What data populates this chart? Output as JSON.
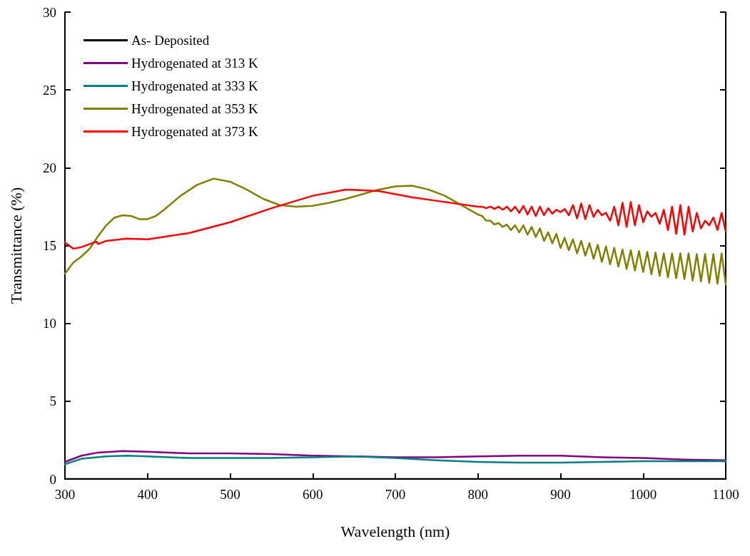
{
  "chart_data": {
    "type": "line",
    "xlabel": "Wavelength (nm)",
    "ylabel": "Transmittance (%)",
    "xlim": [
      300,
      1100
    ],
    "xticks": [
      300,
      400,
      500,
      600,
      700,
      800,
      900,
      1000,
      1100
    ],
    "ylim": [
      0,
      30
    ],
    "yticks": [
      0,
      5,
      10,
      15,
      20,
      25,
      30
    ],
    "grid": false,
    "legend": "top left",
    "marker": "none",
    "line_style": "solid",
    "series": [
      {
        "name": "As- Deposited",
        "color": "#000000",
        "x": [
          300,
          1100
        ],
        "values": [
          0,
          0
        ]
      },
      {
        "name": "Hydrogenated at 313 K",
        "color": "#800080",
        "x": [
          300,
          320,
          340,
          370,
          400,
          450,
          500,
          550,
          600,
          650,
          700,
          750,
          800,
          850,
          900,
          950,
          1000,
          1050,
          1100
        ],
        "values": [
          1.1,
          1.5,
          1.7,
          1.8,
          1.75,
          1.65,
          1.65,
          1.6,
          1.5,
          1.45,
          1.4,
          1.4,
          1.45,
          1.5,
          1.5,
          1.4,
          1.35,
          1.25,
          1.2
        ]
      },
      {
        "name": "Hydrogenated at 333 K",
        "color": "#008080",
        "x": [
          300,
          320,
          350,
          375,
          400,
          450,
          500,
          550,
          600,
          650,
          700,
          750,
          800,
          850,
          900,
          950,
          1000,
          1050,
          1100
        ],
        "values": [
          0.95,
          1.3,
          1.45,
          1.5,
          1.45,
          1.35,
          1.35,
          1.35,
          1.4,
          1.45,
          1.35,
          1.2,
          1.1,
          1.05,
          1.05,
          1.1,
          1.15,
          1.15,
          1.15
        ]
      },
      {
        "name": "Hydrogenated at 353 K",
        "color": "#808000",
        "x": [
          300,
          310,
          320,
          330,
          340,
          350,
          360,
          370,
          380,
          390,
          400,
          410,
          420,
          440,
          460,
          480,
          500,
          520,
          540,
          560,
          580,
          600,
          620,
          640,
          660,
          680,
          700,
          720,
          740,
          760,
          780,
          800,
          805,
          810,
          815,
          820,
          825,
          830,
          835,
          840,
          845,
          850,
          855,
          860,
          865,
          870,
          875,
          880,
          885,
          890,
          895,
          900,
          905,
          910,
          915,
          920,
          925,
          930,
          935,
          940,
          945,
          950,
          955,
          960,
          965,
          970,
          975,
          980,
          985,
          990,
          995,
          1000,
          1005,
          1010,
          1015,
          1020,
          1025,
          1030,
          1035,
          1040,
          1045,
          1050,
          1055,
          1060,
          1065,
          1070,
          1075,
          1080,
          1085,
          1090,
          1095,
          1100
        ],
        "values": [
          13.2,
          13.9,
          14.3,
          14.8,
          15.6,
          16.3,
          16.8,
          16.95,
          16.9,
          16.7,
          16.7,
          16.9,
          17.3,
          18.2,
          18.9,
          19.3,
          19.1,
          18.6,
          18.0,
          17.6,
          17.5,
          17.55,
          17.75,
          18.0,
          18.3,
          18.6,
          18.8,
          18.85,
          18.6,
          18.2,
          17.6,
          17.0,
          16.9,
          16.6,
          16.6,
          16.35,
          16.45,
          16.2,
          16.35,
          16.0,
          16.3,
          15.85,
          16.3,
          15.7,
          16.2,
          15.55,
          16.1,
          15.3,
          15.85,
          15.15,
          15.75,
          14.85,
          15.5,
          14.7,
          15.4,
          14.5,
          15.3,
          14.35,
          15.15,
          14.15,
          15.05,
          13.95,
          14.95,
          13.8,
          14.85,
          13.65,
          14.75,
          13.5,
          14.7,
          13.4,
          14.65,
          13.3,
          14.6,
          13.15,
          14.55,
          13.05,
          14.5,
          12.95,
          14.5,
          12.9,
          14.5,
          12.85,
          14.5,
          12.75,
          14.45,
          12.7,
          14.45,
          12.6,
          14.45,
          12.55,
          14.5,
          12.5
        ]
      },
      {
        "name": "Hydrogenated at 373 K",
        "color": "#ff0000",
        "x": [
          300,
          310,
          320,
          330,
          338,
          340,
          350,
          375,
          400,
          450,
          500,
          550,
          600,
          640,
          680,
          720,
          760,
          800,
          805,
          810,
          815,
          820,
          825,
          830,
          835,
          840,
          845,
          850,
          855,
          860,
          865,
          870,
          875,
          880,
          885,
          890,
          895,
          900,
          905,
          910,
          915,
          920,
          925,
          930,
          935,
          940,
          945,
          950,
          955,
          960,
          965,
          970,
          975,
          980,
          985,
          990,
          995,
          1000,
          1005,
          1010,
          1015,
          1020,
          1025,
          1030,
          1035,
          1040,
          1045,
          1050,
          1055,
          1060,
          1065,
          1070,
          1075,
          1080,
          1085,
          1090,
          1095,
          1100
        ],
        "values": [
          15.2,
          14.8,
          14.9,
          15.1,
          15.25,
          15.1,
          15.3,
          15.45,
          15.4,
          15.8,
          16.5,
          17.4,
          18.2,
          18.6,
          18.5,
          18.1,
          17.8,
          17.5,
          17.5,
          17.4,
          17.5,
          17.35,
          17.5,
          17.3,
          17.5,
          17.2,
          17.5,
          17.1,
          17.55,
          17.0,
          17.5,
          16.9,
          17.5,
          16.95,
          17.4,
          17.05,
          17.3,
          17.15,
          17.35,
          16.95,
          17.6,
          16.75,
          17.7,
          16.7,
          17.6,
          16.85,
          17.3,
          16.95,
          17.1,
          16.6,
          17.5,
          16.3,
          17.75,
          16.2,
          17.8,
          16.3,
          17.6,
          16.5,
          17.2,
          16.85,
          17.1,
          16.4,
          17.3,
          16.0,
          17.5,
          15.75,
          17.6,
          15.7,
          17.5,
          15.9,
          17.1,
          16.1,
          16.6,
          16.3,
          16.8,
          16.0,
          17.1,
          15.9
        ]
      }
    ]
  }
}
